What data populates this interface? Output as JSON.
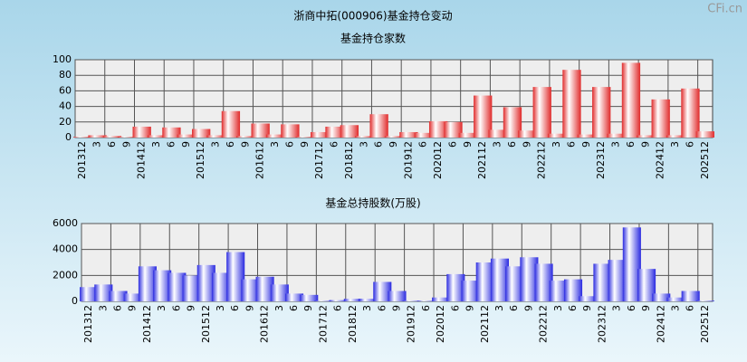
{
  "title": "浙商中拓(000906)基金持仓变动",
  "watermark": "CFi.cn",
  "chart_data": [
    {
      "type": "bar",
      "title": "基金持仓家数",
      "color": "#e02a2a",
      "grid": true,
      "categories": [
        "201312",
        "3",
        "6",
        "9",
        "201412",
        "3",
        "6",
        "9",
        "201512",
        "3",
        "6",
        "9",
        "201612",
        "3",
        "6",
        "9",
        "201712",
        "6",
        "201812",
        "3",
        "6",
        "9",
        "201912",
        "6",
        "202012",
        "6",
        "9",
        "202112",
        "3",
        "6",
        "9",
        "202212",
        "3",
        "6",
        "9",
        "202312",
        "3",
        "6",
        "9",
        "202412",
        "3",
        "6",
        "202512"
      ],
      "values": [
        1,
        3,
        2,
        1,
        14,
        3,
        13,
        4,
        11,
        3,
        34,
        2,
        18,
        4,
        17,
        1,
        7,
        14,
        16,
        2,
        30,
        2,
        7,
        6,
        21,
        20,
        6,
        54,
        10,
        39,
        9,
        65,
        5,
        87,
        4,
        65,
        5,
        96,
        3,
        49,
        3,
        63,
        8
      ],
      "ylim": [
        0,
        100
      ],
      "yticks": [
        0,
        20,
        40,
        60,
        80,
        100
      ]
    },
    {
      "type": "bar",
      "title": "基金总持股数(万股)",
      "color": "#2a2ae0",
      "grid": true,
      "categories": [
        "201312",
        "3",
        "6",
        "9",
        "201412",
        "3",
        "6",
        "9",
        "201512",
        "3",
        "6",
        "9",
        "201612",
        "3",
        "6",
        "9",
        "201712",
        "6",
        "201812",
        "3",
        "6",
        "9",
        "201912",
        "6",
        "202012",
        "6",
        "9",
        "202112",
        "3",
        "6",
        "9",
        "202212",
        "3",
        "6",
        "9",
        "202312",
        "3",
        "6",
        "9",
        "202412",
        "3",
        "6",
        "202512"
      ],
      "values": [
        1100,
        1300,
        800,
        600,
        2700,
        2400,
        2200,
        2000,
        2800,
        2200,
        3800,
        1700,
        1900,
        1300,
        600,
        500,
        50,
        100,
        200,
        200,
        1500,
        800,
        50,
        50,
        300,
        2100,
        1600,
        3000,
        3300,
        2700,
        3400,
        2900,
        1600,
        1700,
        400,
        2900,
        3200,
        5700,
        2500,
        600,
        300,
        800,
        50
      ],
      "ylim": [
        0,
        6000
      ],
      "yticks": [
        0,
        2000,
        4000,
        6000
      ]
    }
  ]
}
